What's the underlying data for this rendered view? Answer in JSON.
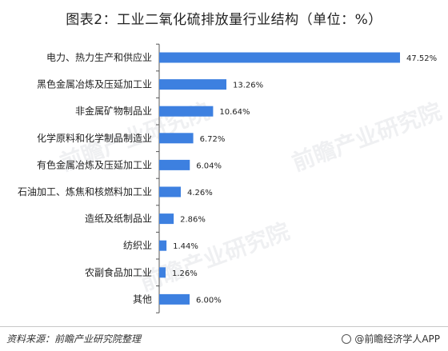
{
  "title": "图表2：工业二氧化硫排放量行业结构（单位：%）",
  "footer": {
    "source": "资料来源：前瞻产业研究院整理",
    "brand": "@前瞻经济学人APP"
  },
  "watermark": "前瞻产业研究院",
  "colors": {
    "bar": "#3d80e0",
    "axis": "#555555",
    "label": "#222222"
  },
  "chart_data": {
    "type": "bar",
    "orientation": "horizontal",
    "title": "图表2：工业二氧化硫排放量行业结构（单位：%）",
    "xlabel": "",
    "ylabel": "",
    "unit": "%",
    "xlim": [
      0,
      50
    ],
    "grid": false,
    "categories": [
      "电力、热力生产和供应业",
      "黑色金属冶炼及压延加工业",
      "非金属矿物制品业",
      "化学原料和化学制品制造业",
      "有色金属冶炼及压延加工业",
      "石油加工、炼焦和核燃料加工业",
      "造纸及纸制品业",
      "纺织业",
      "农副食品加工业",
      "其他"
    ],
    "values": [
      47.52,
      13.26,
      10.64,
      6.72,
      6.04,
      4.26,
      2.86,
      1.44,
      1.26,
      6.0
    ],
    "value_labels": [
      "47.52%",
      "13.26%",
      "10.64%",
      "6.72%",
      "6.04%",
      "4.26%",
      "2.86%",
      "1.44%",
      "1.26%",
      "6.00%"
    ]
  }
}
